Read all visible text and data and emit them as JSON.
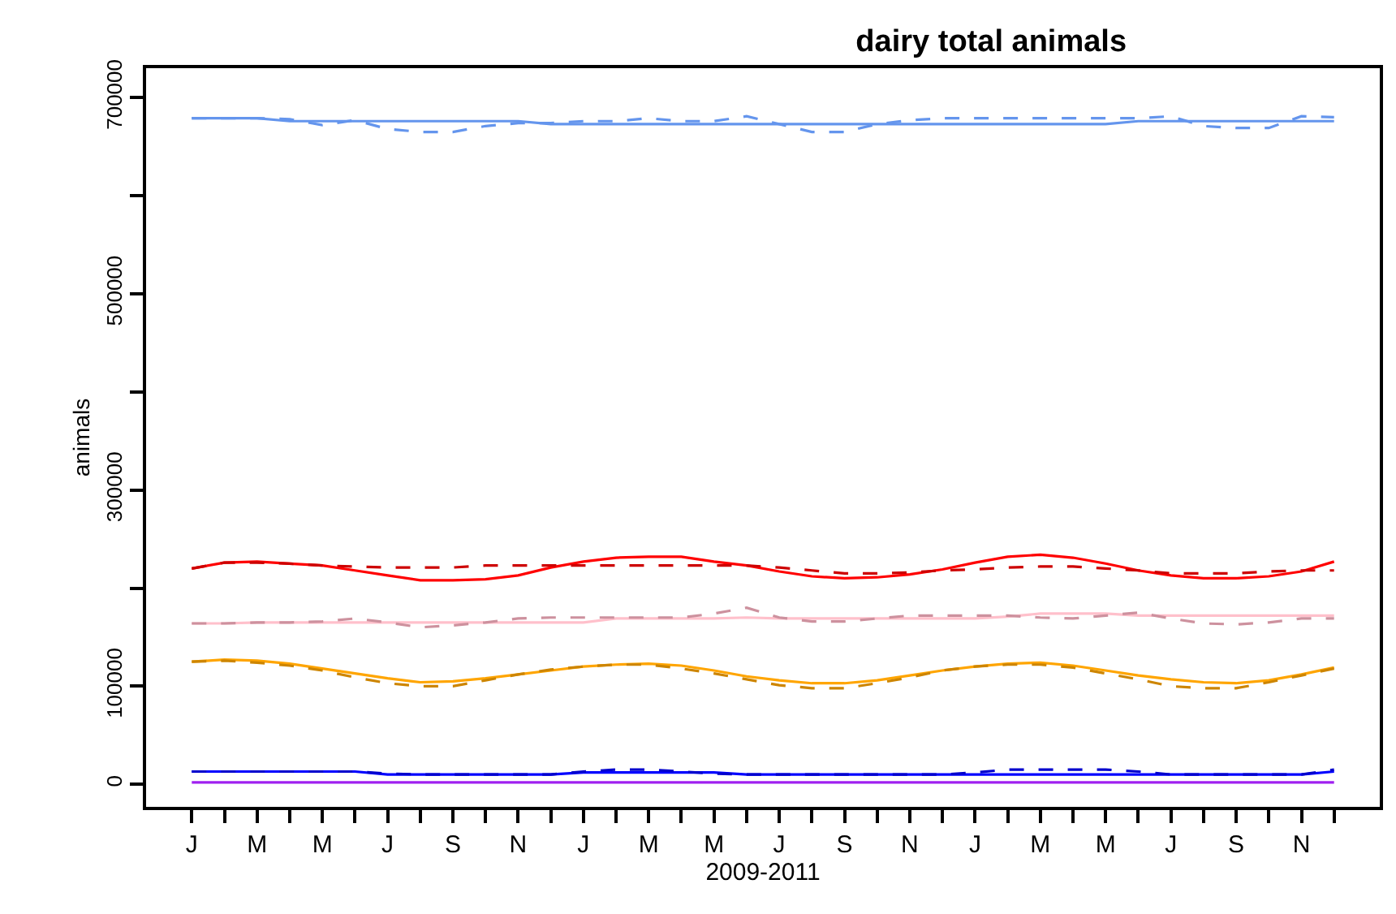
{
  "chart_data": {
    "type": "line",
    "title": "dairy total animals",
    "xlabel": "2009-2011",
    "ylabel": "animals",
    "categories": [
      "J",
      null,
      "M",
      null,
      "M",
      null,
      "J",
      null,
      "S",
      null,
      "N",
      null,
      "J",
      null,
      "M",
      null,
      "M",
      null,
      "J",
      null,
      "S",
      null,
      "N",
      null,
      "J",
      null,
      "M",
      null,
      "M",
      null,
      "J",
      null,
      "S",
      null,
      "N",
      null
    ],
    "ylim": [
      -23000,
      730000
    ],
    "yticks": [
      0,
      100000,
      {
        "value": 200000,
        "label": null
      },
      300000,
      {
        "value": 400000,
        "label": null
      },
      500000,
      {
        "value": 600000,
        "label": null
      },
      700000
    ],
    "marker": "none",
    "series": [
      {
        "color": "#6495ed",
        "line_style": "solid",
        "values": [
          679000,
          679000,
          679000,
          676000,
          676000,
          676000,
          676000,
          676000,
          676000,
          676000,
          676000,
          673000,
          673000,
          673000,
          673000,
          673000,
          673000,
          673000,
          673000,
          673000,
          673000,
          673000,
          673000,
          673000,
          673000,
          673000,
          673000,
          673000,
          673000,
          676000,
          676000,
          676000,
          676000,
          676000,
          676000,
          676000
        ]
      },
      {
        "color": "#6495ed",
        "line_style": "dashed",
        "values": [
          679000,
          679000,
          679000,
          678000,
          672000,
          677000,
          668000,
          665000,
          665000,
          671000,
          674000,
          674000,
          676000,
          676000,
          679000,
          676000,
          676000,
          681000,
          673000,
          665000,
          665000,
          673000,
          677000,
          679000,
          679000,
          679000,
          679000,
          679000,
          679000,
          679000,
          681000,
          671000,
          669000,
          669000,
          681000,
          680000
        ]
      },
      {
        "color": "#ff0000",
        "line_style": "solid",
        "values": [
          220000,
          226000,
          227000,
          225000,
          223000,
          218000,
          213000,
          208000,
          208000,
          209000,
          213000,
          221000,
          227000,
          231000,
          232000,
          232000,
          227000,
          223000,
          217000,
          212000,
          210000,
          211000,
          214000,
          219000,
          226000,
          232000,
          234000,
          231000,
          225000,
          218000,
          213000,
          210000,
          210000,
          212000,
          217000,
          227000
        ]
      },
      {
        "color": "#cd0000",
        "line_style": "dashed",
        "values": [
          220000,
          226000,
          226000,
          225000,
          223000,
          222000,
          221000,
          221000,
          221000,
          223000,
          223000,
          223000,
          223000,
          223000,
          223000,
          223000,
          223000,
          223000,
          221000,
          218000,
          215000,
          215000,
          216000,
          218000,
          219000,
          221000,
          222000,
          222000,
          220000,
          218000,
          215000,
          215000,
          215000,
          217000,
          218000,
          218000
        ]
      },
      {
        "color": "#ffc0cb",
        "line_style": "solid",
        "values": [
          164000,
          164000,
          165000,
          165000,
          165000,
          165000,
          165000,
          165000,
          165000,
          165000,
          165000,
          165000,
          165000,
          169000,
          169000,
          169000,
          169000,
          170000,
          169000,
          169000,
          169000,
          169000,
          169000,
          169000,
          169000,
          171000,
          174000,
          174000,
          174000,
          172000,
          172000,
          172000,
          172000,
          172000,
          172000,
          172000
        ]
      },
      {
        "color": "#cd919e",
        "line_style": "dashed",
        "values": [
          164000,
          164000,
          165000,
          165000,
          166000,
          169000,
          165000,
          160000,
          162000,
          165000,
          169000,
          170000,
          170000,
          170000,
          170000,
          170000,
          174000,
          180000,
          170000,
          166000,
          166000,
          169000,
          172000,
          172000,
          172000,
          172000,
          170000,
          169000,
          172000,
          175000,
          169000,
          164000,
          163000,
          165000,
          169000,
          169000
        ]
      },
      {
        "color": "#ffa500",
        "line_style": "solid",
        "values": [
          125000,
          127000,
          126000,
          123000,
          118000,
          113000,
          108000,
          104000,
          105000,
          108000,
          112000,
          116000,
          120000,
          122000,
          123000,
          121000,
          116000,
          110000,
          106000,
          103000,
          103000,
          106000,
          111000,
          116000,
          120000,
          123000,
          124000,
          121000,
          116000,
          111000,
          107000,
          104000,
          103000,
          106000,
          112000,
          119000
        ]
      },
      {
        "color": "#cd8500",
        "line_style": "dashed",
        "values": [
          125000,
          126000,
          124000,
          121000,
          116000,
          109000,
          103000,
          100000,
          100000,
          106000,
          112000,
          117000,
          120000,
          122000,
          122000,
          118000,
          113000,
          107000,
          101000,
          98000,
          98000,
          103000,
          109000,
          116000,
          120000,
          122000,
          122000,
          119000,
          113000,
          107000,
          100000,
          98000,
          98000,
          104000,
          111000,
          118000
        ]
      },
      {
        "color": "#0000ff",
        "line_style": "solid",
        "values": [
          13000,
          13000,
          13000,
          13000,
          13000,
          13000,
          10000,
          10000,
          10000,
          10000,
          10000,
          10000,
          12000,
          12000,
          12000,
          12000,
          12000,
          10000,
          10000,
          10000,
          10000,
          10000,
          10000,
          10000,
          10000,
          10000,
          10000,
          10000,
          10000,
          10000,
          10000,
          10000,
          10000,
          10000,
          10000,
          13000
        ]
      },
      {
        "color": "#0000cd",
        "line_style": "dashed",
        "values": [
          13000,
          13000,
          13000,
          13000,
          13000,
          13000,
          11000,
          10000,
          10000,
          10000,
          10000,
          10000,
          13000,
          15000,
          15000,
          13000,
          11000,
          10000,
          10000,
          10000,
          10000,
          10000,
          10000,
          10000,
          12000,
          15000,
          15000,
          15000,
          15000,
          13000,
          10000,
          10000,
          10000,
          10000,
          10000,
          15000
        ]
      },
      {
        "color": "#a020f0",
        "line_style": "solid",
        "values": [
          2000,
          2000,
          2000,
          2000,
          2000,
          2000,
          2000,
          2000,
          2000,
          2000,
          2000,
          2000,
          2000,
          2000,
          2000,
          2000,
          2000,
          2000,
          2000,
          2000,
          2000,
          2000,
          2000,
          2000,
          2000,
          2000,
          2000,
          2000,
          2000,
          2000,
          2000,
          2000,
          2000,
          2000,
          2000,
          2000
        ]
      }
    ]
  }
}
